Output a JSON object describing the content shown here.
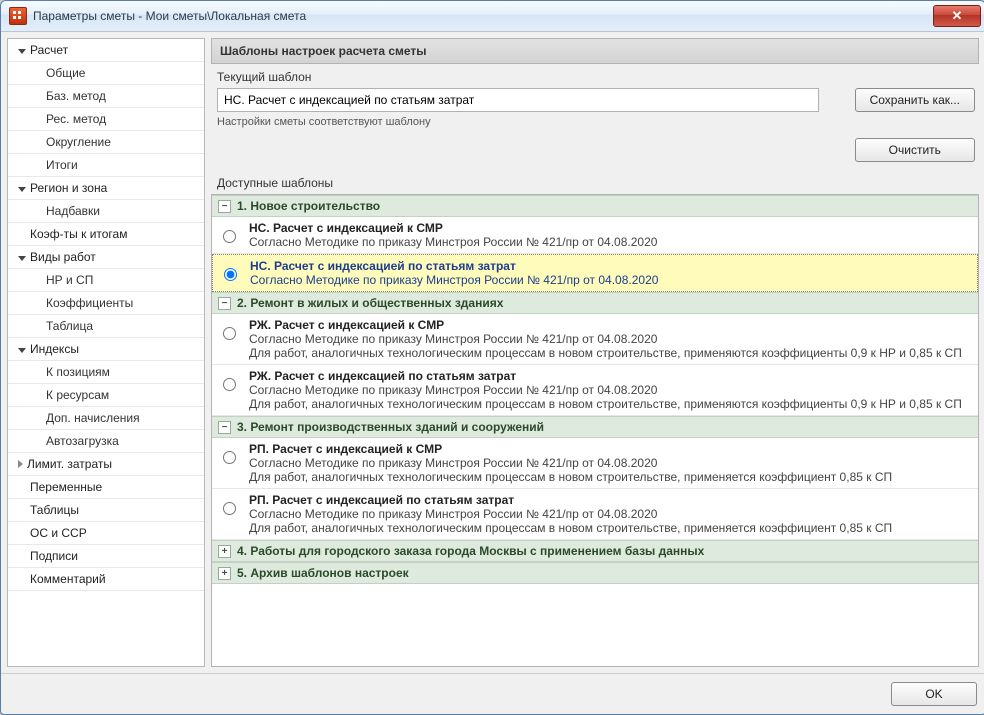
{
  "window": {
    "title": "Параметры сметы - Мои сметы\\Локальная смета"
  },
  "sidebar": {
    "items": [
      {
        "label": "Расчет",
        "kind": "group",
        "expanded": true
      },
      {
        "label": "Общие",
        "kind": "sub"
      },
      {
        "label": "Баз. метод",
        "kind": "sub"
      },
      {
        "label": "Рес. метод",
        "kind": "sub"
      },
      {
        "label": "Округление",
        "kind": "sub"
      },
      {
        "label": "Итоги",
        "kind": "sub"
      },
      {
        "label": "Регион и зона",
        "kind": "group",
        "expanded": true
      },
      {
        "label": "Надбавки",
        "kind": "sub"
      },
      {
        "label": "Коэф-ты к итогам",
        "kind": "level1"
      },
      {
        "label": "Виды работ",
        "kind": "group",
        "expanded": true
      },
      {
        "label": "НР и СП",
        "kind": "sub"
      },
      {
        "label": "Коэффициенты",
        "kind": "sub"
      },
      {
        "label": "Таблица",
        "kind": "sub"
      },
      {
        "label": "Индексы",
        "kind": "group",
        "expanded": true
      },
      {
        "label": "К позициям",
        "kind": "sub"
      },
      {
        "label": "К ресурсам",
        "kind": "sub"
      },
      {
        "label": "Доп. начисления",
        "kind": "sub"
      },
      {
        "label": "Автозагрузка",
        "kind": "sub"
      },
      {
        "label": "Лимит. затраты",
        "kind": "group",
        "expanded": false
      },
      {
        "label": "Переменные",
        "kind": "level1"
      },
      {
        "label": "Таблицы",
        "kind": "level1"
      },
      {
        "label": "ОС и ССР",
        "kind": "level1"
      },
      {
        "label": "Подписи",
        "kind": "level1"
      },
      {
        "label": "Комментарий",
        "kind": "level1"
      }
    ]
  },
  "main": {
    "header": "Шаблоны настроек расчета сметы",
    "current_label": "Текущий шаблон",
    "current_value": "НС. Расчет с индексацией по статьям затрат",
    "hint": "Настройки сметы соответствуют шаблону",
    "save_as_btn": "Сохранить как...",
    "clear_btn": "Очистить",
    "available_label": "Доступные шаблоны"
  },
  "templates": {
    "groups": [
      {
        "title": "1. Новое строительство",
        "state": "open",
        "items": [
          {
            "title": "НС. Расчет с индексацией к СМР",
            "desc": "Согласно Методике по приказу Минстроя России № 421/пр от 04.08.2020",
            "selected": false
          },
          {
            "title": "НС. Расчет с индексацией по статьям затрат",
            "desc": "Согласно Методике по приказу Минстроя России № 421/пр от 04.08.2020",
            "selected": true
          }
        ]
      },
      {
        "title": "2. Ремонт в жилых и общественных зданиях",
        "state": "open",
        "items": [
          {
            "title": "РЖ. Расчет с индексацией к СМР",
            "desc": "Согласно Методике по приказу Минстроя России № 421/пр от 04.08.2020\nДля работ, аналогичных технологическим процессам в новом строительстве, применяются коэффициенты 0,9 к НР и 0,85 к СП",
            "selected": false
          },
          {
            "title": "РЖ. Расчет с индексацией по статьям затрат",
            "desc": "Согласно Методике по приказу Минстроя России № 421/пр от 04.08.2020\nДля работ, аналогичных технологическим процессам в новом строительстве, применяются коэффициенты 0,9 к НР и 0,85 к СП",
            "selected": false
          }
        ]
      },
      {
        "title": "3. Ремонт производственных зданий и сооружений",
        "state": "open",
        "items": [
          {
            "title": "РП. Расчет с индексацией к СМР",
            "desc": "Согласно Методике по приказу Минстроя России № 421/пр от 04.08.2020\nДля работ, аналогичных технологическим процессам в новом строительстве, применяется коэффициент 0,85 к СП",
            "selected": false
          },
          {
            "title": "РП. Расчет с индексацией по статьям затрат",
            "desc": "Согласно Методике по приказу Минстроя России № 421/пр от 04.08.2020\nДля работ, аналогичных технологическим процессам в новом строительстве, применяется коэффициент 0,85 к СП",
            "selected": false
          }
        ]
      },
      {
        "title": "4. Работы для городского заказа города Москвы с применением базы данных",
        "state": "closed",
        "items": []
      },
      {
        "title": "5. Архив шаблонов настроек",
        "state": "closed",
        "items": []
      }
    ]
  },
  "footer": {
    "ok_btn": "OK"
  },
  "colors": {
    "group_bg": "#dfeade",
    "selected_bg": "#fffcbb",
    "selected_fg": "#1c3d8f"
  }
}
